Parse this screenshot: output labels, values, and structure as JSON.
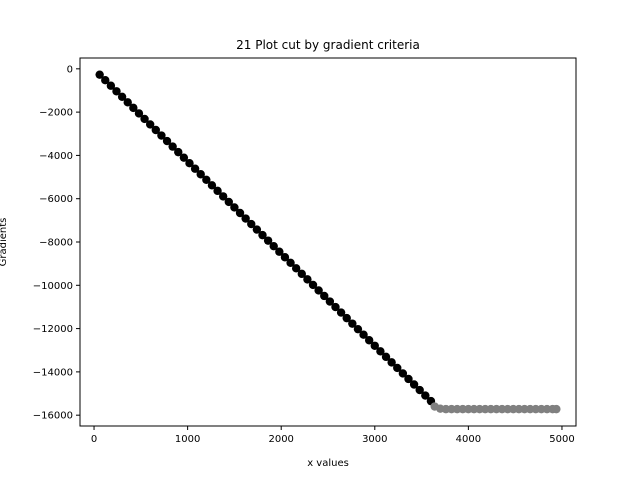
{
  "chart_data": {
    "type": "scatter",
    "title": "21 Plot cut by gradient criteria",
    "xlabel": "x values",
    "ylabel": "Gradients",
    "xlim": [
      -150,
      5150
    ],
    "ylim": [
      -16500,
      500
    ],
    "xticks": [
      0,
      1000,
      2000,
      3000,
      4000,
      5000
    ],
    "yticks": [
      0,
      -2000,
      -4000,
      -6000,
      -8000,
      -10000,
      -12000,
      -14000,
      -16000
    ],
    "xtick_labels": [
      "0",
      "1000",
      "2000",
      "3000",
      "4000",
      "5000"
    ],
    "ytick_labels": [
      "0",
      "−2000",
      "−4000",
      "−6000",
      "−8000",
      "−10000",
      "−12000",
      "−14000",
      "−16000"
    ],
    "grid": false,
    "series": [
      {
        "color": "#000000",
        "x_start": 60,
        "x_step": 60,
        "count": 60,
        "y_start": -270,
        "y_end": -15350
      },
      {
        "color": "#808080",
        "x": [
          3640,
          3700,
          3760,
          3820,
          3880,
          3940,
          4000,
          4060,
          4120,
          4180,
          4240,
          4300,
          4360,
          4420,
          4480,
          4540,
          4600,
          4660,
          4720,
          4780,
          4840,
          4900,
          4940
        ],
        "y": [
          -15600,
          -15700,
          -15720,
          -15720,
          -15720,
          -15720,
          -15720,
          -15720,
          -15720,
          -15720,
          -15720,
          -15720,
          -15720,
          -15720,
          -15720,
          -15720,
          -15720,
          -15720,
          -15720,
          -15720,
          -15720,
          -15720,
          -15720
        ]
      }
    ]
  }
}
